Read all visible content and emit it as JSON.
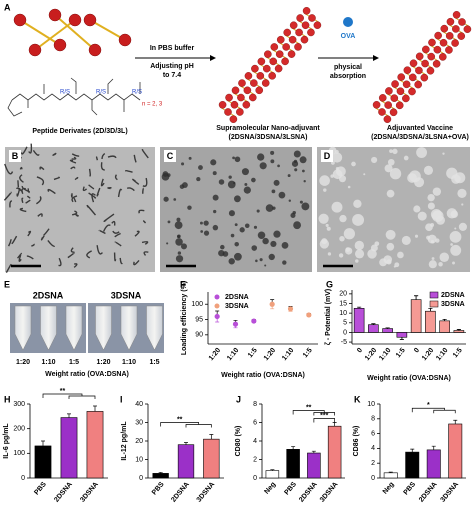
{
  "scheme": {
    "label": "A",
    "step1": [
      "In PBS buffer",
      "Adjusting pH",
      "to 7.4"
    ],
    "ova": "OVA",
    "step2": [
      "physical",
      "absorption"
    ],
    "peptide": "Peptide Derivates (2D/3D/3L)",
    "stereo": "R/S",
    "n": "n = 2, 3",
    "nanoadjuvant": [
      "Supramolecular Nano-adjuvant",
      "(2DSNA/3DSNA/3LSNA)"
    ],
    "vaccine": [
      "Adjuvanted Vaccine",
      "(2DSNA/3DSNA/3LSNA+OVA)"
    ]
  },
  "tem": {
    "labels": [
      "B",
      "C",
      "D"
    ]
  },
  "photos": {
    "label": "E",
    "groups": [
      "2DSNA",
      "3DSNA"
    ],
    "ratios": [
      "1:20",
      "1:10",
      "1:5",
      "1:20",
      "1:10",
      "1:5"
    ],
    "xlabel": "Weight ratio (OVA:DSNA)"
  },
  "chart_data": [
    {
      "type": "scatter",
      "label": "F",
      "ylabel": "Loading efficiency (%)",
      "xlabel": "Weight ratio (OVA:DSNA)",
      "categories": [
        "1:20",
        "1:10",
        "1:5",
        "1:20",
        "1:10",
        "1:5"
      ],
      "series": [
        {
          "name": "2DSNA",
          "color": "#b84fd8",
          "values": [
            96,
            93.5,
            94.5,
            null,
            null,
            null
          ],
          "errors": [
            1.8,
            1.2,
            0.5,
            null,
            null,
            null
          ]
        },
        {
          "name": "3DSNA",
          "color": "#f0a07c",
          "values": [
            null,
            null,
            null,
            100,
            98.5,
            96.5
          ],
          "errors": [
            null,
            null,
            null,
            1.5,
            0.8,
            0.5
          ]
        }
      ],
      "ylim": [
        87,
        104
      ],
      "yticks": [
        90,
        95,
        100
      ],
      "legend": "top-left"
    },
    {
      "type": "bar",
      "label": "G",
      "ylabel": "ζ - Potential (mV)",
      "xlabel": "Weight ratio (OVA:DSNA)",
      "categories": [
        "0",
        "1:20",
        "1:10",
        "1:5",
        "0",
        "1:20",
        "1:10",
        "1:5"
      ],
      "series": [
        {
          "name": "2DSNA",
          "color": "#b84fd8",
          "values": [
            12.5,
            4,
            2,
            -2.5,
            null,
            null,
            null,
            null
          ],
          "errors": [
            0.6,
            0.5,
            0.4,
            1.2,
            null,
            null,
            null,
            null
          ]
        },
        {
          "name": "3DSNA",
          "color": "#f59a94",
          "values": [
            null,
            null,
            null,
            null,
            17,
            11,
            6,
            1
          ],
          "errors": [
            null,
            null,
            null,
            null,
            2,
            1.5,
            0.8,
            0.6
          ]
        }
      ],
      "ylim": [
        -6,
        22
      ],
      "yticks": [
        -5,
        0,
        5,
        10,
        15,
        20
      ],
      "legend": "top-right"
    },
    {
      "type": "bar",
      "label": "H",
      "ylabel": "IL-6 pg/mL",
      "categories": [
        "PBS",
        "2DSNA",
        "3DSNA"
      ],
      "values": [
        130,
        245,
        270
      ],
      "errors": [
        20,
        15,
        22
      ],
      "colors": [
        "#000000",
        "#9b30c8",
        "#f08080"
      ],
      "ylim": [
        0,
        300
      ],
      "yticks": [
        0,
        100,
        200,
        300
      ],
      "annotations": [
        "**"
      ]
    },
    {
      "type": "bar",
      "label": "I",
      "ylabel": "IL-12 pg/mL",
      "categories": [
        "PBS",
        "2DSNA",
        "3DSNA"
      ],
      "values": [
        2.5,
        18,
        21
      ],
      "errors": [
        0.5,
        1.2,
        2.5
      ],
      "colors": [
        "#000000",
        "#9b30c8",
        "#f08080"
      ],
      "ylim": [
        0,
        40
      ],
      "yticks": [
        0,
        10,
        20,
        30,
        40
      ],
      "annotations": [
        "**"
      ]
    },
    {
      "type": "bar",
      "label": "J",
      "ylabel": "CD80 (%)",
      "categories": [
        "Neg",
        "PBS",
        "2DSNA",
        "3DSNA"
      ],
      "values": [
        0.8,
        3.1,
        2.7,
        5.6
      ],
      "errors": [
        0.1,
        0.3,
        0.2,
        0.4
      ],
      "colors": [
        "#ffffff",
        "#000000",
        "#9b30c8",
        "#f08080"
      ],
      "ylim": [
        0,
        8
      ],
      "yticks": [
        0,
        2,
        4,
        6,
        8
      ],
      "annotations": [
        "**",
        "***"
      ]
    },
    {
      "type": "bar",
      "label": "K",
      "ylabel": "CD86 (%)",
      "categories": [
        "Neg",
        "PBS",
        "2DSNA",
        "3DSNA"
      ],
      "values": [
        0.7,
        3.5,
        3.8,
        7.3
      ],
      "errors": [
        0.1,
        0.4,
        0.5,
        0.5
      ],
      "colors": [
        "#ffffff",
        "#000000",
        "#9b30c8",
        "#f08080"
      ],
      "ylim": [
        0,
        10
      ],
      "yticks": [
        0,
        2,
        4,
        6,
        8,
        10
      ],
      "annotations": [
        "*"
      ]
    }
  ]
}
